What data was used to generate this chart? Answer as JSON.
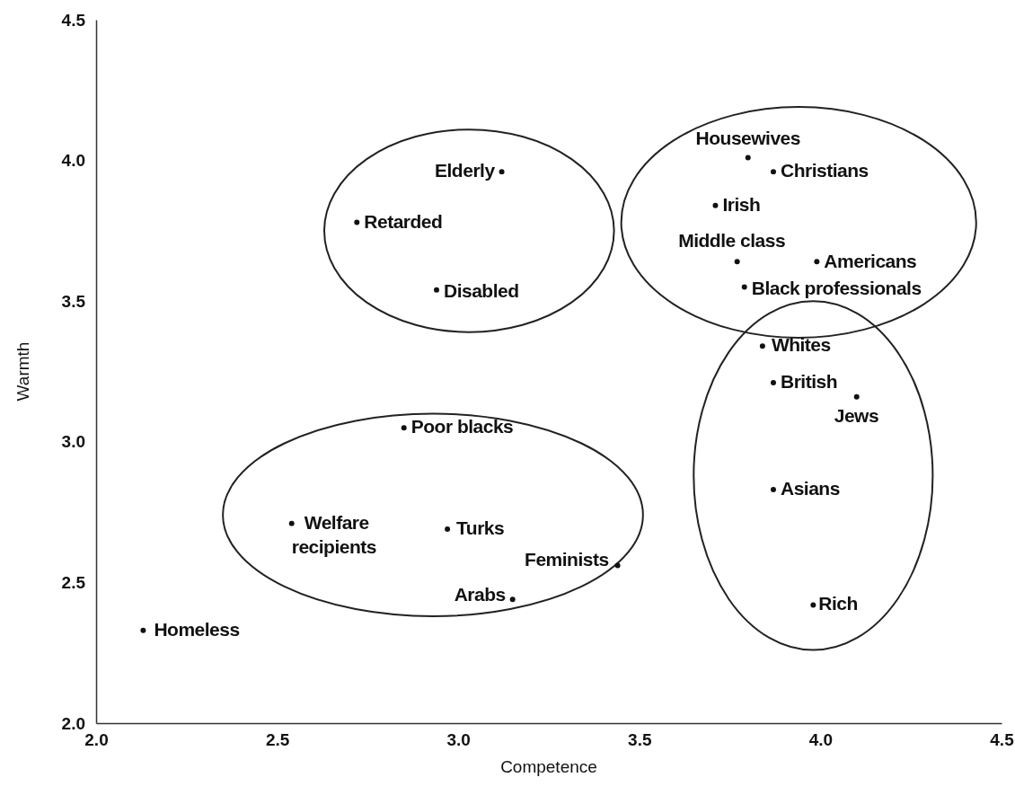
{
  "chart_data": {
    "type": "scatter",
    "xlabel": "Competence",
    "ylabel": "Warmth",
    "marker": "circle",
    "legend": false,
    "grid": false,
    "xlim": [
      2,
      4.5
    ],
    "ylim": [
      2,
      4.5
    ],
    "xticks": [
      {
        "value": 2,
        "label": "2.0"
      },
      {
        "value": 2.5,
        "label": "2.5"
      },
      {
        "value": 3,
        "label": "3.0"
      },
      {
        "value": 3.5,
        "label": "3.5"
      },
      {
        "value": 4,
        "label": "4.0"
      },
      {
        "value": 4.5,
        "label": "4.5"
      }
    ],
    "yticks": [
      {
        "value": 2,
        "label": "2.0"
      },
      {
        "value": 2.5,
        "label": "2.5"
      },
      {
        "value": 3,
        "label": "3.0"
      },
      {
        "value": 3.5,
        "label": "3.5"
      },
      {
        "value": 4,
        "label": "4.0"
      },
      {
        "value": 4.5,
        "label": "4.5"
      }
    ],
    "series": [
      {
        "name": "Elderly",
        "color": "#111111",
        "x": [
          3.12
        ],
        "values": [
          3.96
        ]
      },
      {
        "name": "Retarded",
        "color": "#111111",
        "x": [
          2.72
        ],
        "values": [
          3.78
        ]
      },
      {
        "name": "Disabled",
        "color": "#111111",
        "x": [
          2.94
        ],
        "values": [
          3.54
        ]
      },
      {
        "name": "Housewives",
        "color": "#111111",
        "x": [
          3.8
        ],
        "values": [
          4.01
        ]
      },
      {
        "name": "Christians",
        "color": "#111111",
        "x": [
          3.87
        ],
        "values": [
          3.96
        ]
      },
      {
        "name": "Irish",
        "color": "#111111",
        "x": [
          3.71
        ],
        "values": [
          3.84
        ]
      },
      {
        "name": "Middle class",
        "color": "#111111",
        "x": [
          3.77
        ],
        "values": [
          3.64
        ]
      },
      {
        "name": "Americans",
        "color": "#111111",
        "x": [
          3.99
        ],
        "values": [
          3.64
        ]
      },
      {
        "name": "Black professionals",
        "color": "#111111",
        "x": [
          3.79
        ],
        "values": [
          3.55
        ]
      },
      {
        "name": "Whites",
        "color": "#111111",
        "x": [
          3.84
        ],
        "values": [
          3.34
        ]
      },
      {
        "name": "British",
        "color": "#111111",
        "x": [
          3.87
        ],
        "values": [
          3.21
        ]
      },
      {
        "name": "Jews",
        "color": "#111111",
        "x": [
          4.1
        ],
        "values": [
          3.16
        ]
      },
      {
        "name": "Asians",
        "color": "#111111",
        "x": [
          3.87
        ],
        "values": [
          2.83
        ]
      },
      {
        "name": "Rich",
        "color": "#111111",
        "x": [
          3.98
        ],
        "values": [
          2.42
        ]
      },
      {
        "name": "Poor blacks",
        "color": "#111111",
        "x": [
          2.85
        ],
        "values": [
          3.05
        ]
      },
      {
        "name": "Welfare recipients",
        "color": "#111111",
        "x": [
          2.54
        ],
        "values": [
          2.71
        ]
      },
      {
        "name": "Turks",
        "color": "#111111",
        "x": [
          2.97
        ],
        "values": [
          2.69
        ]
      },
      {
        "name": "Feminists",
        "color": "#111111",
        "x": [
          3.44
        ],
        "values": [
          2.56
        ]
      },
      {
        "name": "Arabs",
        "color": "#111111",
        "x": [
          3.15
        ],
        "values": [
          2.44
        ]
      },
      {
        "name": "Homeless",
        "color": "#111111",
        "x": [
          2.13
        ],
        "values": [
          2.33
        ]
      }
    ]
  }
}
